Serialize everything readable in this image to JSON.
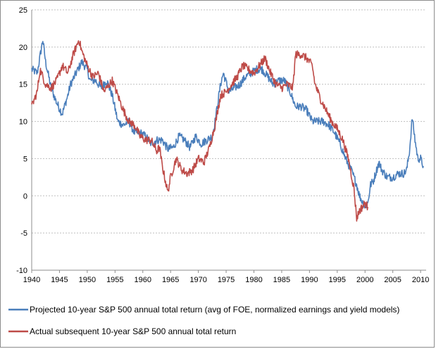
{
  "chart_data": {
    "type": "line",
    "title": "",
    "xlabel": "",
    "ylabel": "",
    "xlim": [
      1940,
      2011
    ],
    "ylim": [
      -10,
      25
    ],
    "x_ticks": [
      1940,
      1945,
      1950,
      1955,
      1960,
      1965,
      1970,
      1975,
      1980,
      1985,
      1990,
      1995,
      2000,
      2005,
      2010
    ],
    "y_ticks": [
      -10,
      -5,
      0,
      5,
      10,
      15,
      20,
      25
    ],
    "grid": "horizontal",
    "legend_position": "bottom",
    "series": [
      {
        "name": "Projected 10-year S&P 500 annual total return (avg of FOE, normalized earnings and yield models)",
        "color": "#4a7ebb",
        "points": [
          [
            1940.0,
            17.0
          ],
          [
            1941.0,
            16.5
          ],
          [
            1942.0,
            21.0
          ],
          [
            1942.5,
            18.0
          ],
          [
            1943.5,
            14.5
          ],
          [
            1944.5,
            12.5
          ],
          [
            1945.5,
            11.0
          ],
          [
            1946.5,
            13.5
          ],
          [
            1947.0,
            15.0
          ],
          [
            1948.0,
            16.5
          ],
          [
            1949.0,
            18.0
          ],
          [
            1950.0,
            17.0
          ],
          [
            1950.5,
            15.5
          ],
          [
            1951.5,
            15.5
          ],
          [
            1952.5,
            14.5
          ],
          [
            1953.5,
            15.5
          ],
          [
            1954.5,
            13.5
          ],
          [
            1955.5,
            10.0
          ],
          [
            1956.5,
            9.5
          ],
          [
            1957.5,
            10.0
          ],
          [
            1958.5,
            8.5
          ],
          [
            1959.5,
            8.5
          ],
          [
            1960.5,
            8.0
          ],
          [
            1961.5,
            7.0
          ],
          [
            1962.5,
            7.5
          ],
          [
            1963.5,
            7.5
          ],
          [
            1964.5,
            6.3
          ],
          [
            1965.5,
            6.5
          ],
          [
            1966.5,
            8.0
          ],
          [
            1967.5,
            7.5
          ],
          [
            1968.5,
            6.5
          ],
          [
            1969.5,
            8.0
          ],
          [
            1970.5,
            7.0
          ],
          [
            1971.5,
            7.5
          ],
          [
            1972.5,
            8.0
          ],
          [
            1973.0,
            10.0
          ],
          [
            1974.0,
            15.0
          ],
          [
            1974.5,
            16.5
          ],
          [
            1975.5,
            14.0
          ],
          [
            1976.5,
            14.5
          ],
          [
            1977.5,
            15.0
          ],
          [
            1978.5,
            16.0
          ],
          [
            1979.5,
            16.5
          ],
          [
            1980.5,
            17.0
          ],
          [
            1981.5,
            17.0
          ],
          [
            1982.5,
            16.0
          ],
          [
            1983.5,
            15.0
          ],
          [
            1984.5,
            15.5
          ],
          [
            1985.5,
            15.5
          ],
          [
            1986.5,
            14.0
          ],
          [
            1987.5,
            12.0
          ],
          [
            1988.5,
            12.0
          ],
          [
            1989.5,
            11.5
          ],
          [
            1990.5,
            10.0
          ],
          [
            1991.5,
            10.0
          ],
          [
            1992.5,
            10.0
          ],
          [
            1993.5,
            9.5
          ],
          [
            1994.5,
            8.5
          ],
          [
            1995.5,
            7.0
          ],
          [
            1996.5,
            5.0
          ],
          [
            1997.5,
            3.5
          ],
          [
            1998.5,
            1.5
          ],
          [
            1999.0,
            0.0
          ],
          [
            2000.0,
            -1.5
          ],
          [
            2000.5,
            -1.0
          ],
          [
            2001.0,
            1.5
          ],
          [
            2001.5,
            2.0
          ],
          [
            2002.5,
            4.5
          ],
          [
            2003.0,
            3.5
          ],
          [
            2004.0,
            2.5
          ],
          [
            2005.0,
            2.5
          ],
          [
            2006.0,
            3.0
          ],
          [
            2007.0,
            3.0
          ],
          [
            2007.5,
            3.5
          ],
          [
            2008.0,
            6.0
          ],
          [
            2008.5,
            10.5
          ],
          [
            2009.0,
            7.5
          ],
          [
            2009.5,
            5.0
          ],
          [
            2010.0,
            5.0
          ],
          [
            2010.5,
            4.0
          ]
        ]
      },
      {
        "name": "Actual subsequent 10-year S&P 500 annual total return",
        "color": "#be4b48",
        "points": [
          [
            1940.0,
            12.0
          ],
          [
            1941.0,
            14.0
          ],
          [
            1941.5,
            17.0
          ],
          [
            1942.5,
            15.0
          ],
          [
            1943.5,
            14.5
          ],
          [
            1944.5,
            15.5
          ],
          [
            1945.5,
            17.5
          ],
          [
            1946.5,
            16.5
          ],
          [
            1947.5,
            19.0
          ],
          [
            1948.5,
            21.0
          ],
          [
            1949.0,
            19.5
          ],
          [
            1950.0,
            17.5
          ],
          [
            1951.0,
            16.0
          ],
          [
            1952.0,
            16.5
          ],
          [
            1953.0,
            14.0
          ],
          [
            1954.5,
            15.5
          ],
          [
            1955.5,
            13.5
          ],
          [
            1956.5,
            11.5
          ],
          [
            1957.5,
            10.0
          ],
          [
            1958.5,
            9.5
          ],
          [
            1959.5,
            8.0
          ],
          [
            1960.5,
            7.5
          ],
          [
            1961.5,
            7.5
          ],
          [
            1962.5,
            6.0
          ],
          [
            1963.0,
            6.5
          ],
          [
            1963.5,
            4.0
          ],
          [
            1964.5,
            0.5
          ],
          [
            1965.0,
            2.5
          ],
          [
            1966.0,
            5.0
          ],
          [
            1967.0,
            3.5
          ],
          [
            1968.0,
            3.0
          ],
          [
            1969.0,
            3.5
          ],
          [
            1970.0,
            5.0
          ],
          [
            1971.0,
            4.5
          ],
          [
            1972.0,
            6.5
          ],
          [
            1973.0,
            9.5
          ],
          [
            1974.0,
            13.5
          ],
          [
            1975.0,
            14.0
          ],
          [
            1976.0,
            15.0
          ],
          [
            1977.0,
            16.0
          ],
          [
            1978.0,
            17.5
          ],
          [
            1979.0,
            17.0
          ],
          [
            1980.0,
            16.5
          ],
          [
            1981.0,
            17.5
          ],
          [
            1982.0,
            18.5
          ],
          [
            1983.0,
            16.5
          ],
          [
            1984.0,
            15.0
          ],
          [
            1985.0,
            14.5
          ],
          [
            1986.0,
            15.0
          ],
          [
            1987.0,
            14.5
          ],
          [
            1987.5,
            19.0
          ],
          [
            1988.5,
            19.0
          ],
          [
            1989.5,
            18.5
          ],
          [
            1990.5,
            17.5
          ],
          [
            1991.0,
            15.0
          ],
          [
            1992.0,
            13.0
          ],
          [
            1993.0,
            11.5
          ],
          [
            1994.0,
            10.0
          ],
          [
            1995.0,
            9.0
          ],
          [
            1996.0,
            7.5
          ],
          [
            1997.0,
            5.0
          ],
          [
            1998.0,
            1.0
          ],
          [
            1998.5,
            -3.0
          ],
          [
            1999.0,
            -2.0
          ],
          [
            2000.0,
            -1.0
          ],
          [
            2000.5,
            -1.5
          ]
        ]
      }
    ]
  }
}
